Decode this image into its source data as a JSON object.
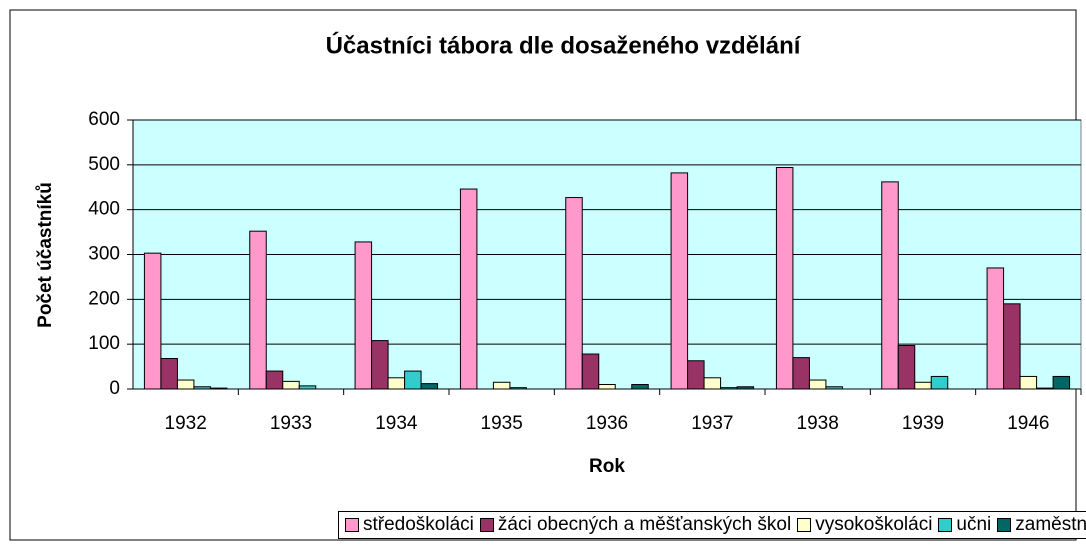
{
  "chart_data": {
    "type": "bar",
    "title": "Účastníci tábora dle dosaženého vzdělání",
    "xlabel": "Rok",
    "ylabel": "Počet účastníků",
    "categories": [
      "1932",
      "1933",
      "1934",
      "1935",
      "1936",
      "1937",
      "1938",
      "1939",
      "1946"
    ],
    "series": [
      {
        "name": "středoškoláci",
        "color": "#ff99cc",
        "values": [
          303,
          352,
          328,
          446,
          427,
          482,
          494,
          462,
          270
        ]
      },
      {
        "name": "žáci obecných a měšťanských škol",
        "color": "#993366",
        "values": [
          68,
          40,
          108,
          0,
          78,
          63,
          70,
          97,
          190
        ]
      },
      {
        "name": "vysokoškoláci",
        "color": "#ffffcc",
        "values": [
          20,
          17,
          25,
          15,
          10,
          25,
          20,
          15,
          28
        ]
      },
      {
        "name": "učni",
        "color": "#33cccc",
        "values": [
          5,
          7,
          40,
          3,
          0,
          3,
          5,
          28,
          2
        ]
      },
      {
        "name": "zaměstnaní",
        "color": "#006666",
        "values": [
          2,
          0,
          12,
          0,
          10,
          5,
          0,
          0,
          28
        ]
      }
    ],
    "ylim": [
      0,
      600
    ],
    "yticks": [
      0,
      100,
      200,
      300,
      400,
      500,
      600
    ],
    "grid": true,
    "legend": "bottom"
  }
}
